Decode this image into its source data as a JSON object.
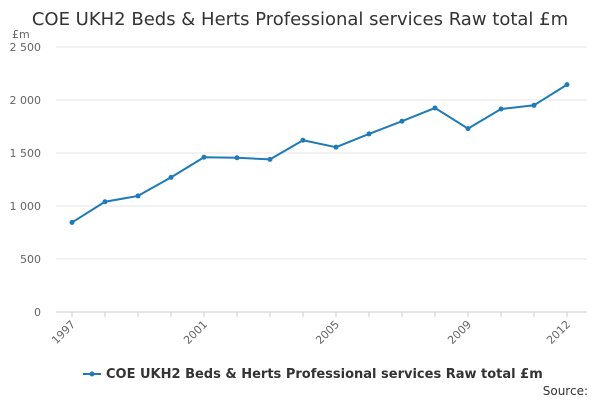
{
  "chart_data": {
    "type": "line",
    "title": "COE UKH2 Beds & Herts Professional services Raw total £m",
    "ylabel": "£m",
    "xlabel": "",
    "ylim": [
      0,
      2500
    ],
    "yticks": [
      0,
      500,
      1000,
      1500,
      2000,
      2500
    ],
    "ytick_labels": [
      "0",
      "500",
      "1 000",
      "1 500",
      "2 000",
      "2 500"
    ],
    "xticks": [
      1997,
      2001,
      2005,
      2009,
      2012
    ],
    "xtick_labels": [
      "1997",
      "2001",
      "2005",
      "2009",
      "2012"
    ],
    "grid": true,
    "legend_position": "bottom",
    "series": [
      {
        "name": "COE UKH2 Beds & Herts Professional services Raw total £m",
        "color": "#1f7ab8",
        "x": [
          1997,
          1998,
          1999,
          2000,
          2001,
          2002,
          2003,
          2004,
          2005,
          2006,
          2007,
          2008,
          2009,
          2010,
          2011,
          2012
        ],
        "values": [
          845,
          1040,
          1095,
          1270,
          1460,
          1455,
          1440,
          1620,
          1555,
          1680,
          1800,
          1925,
          1730,
          1915,
          1950,
          2145
        ]
      }
    ]
  },
  "source_label": "Source:"
}
